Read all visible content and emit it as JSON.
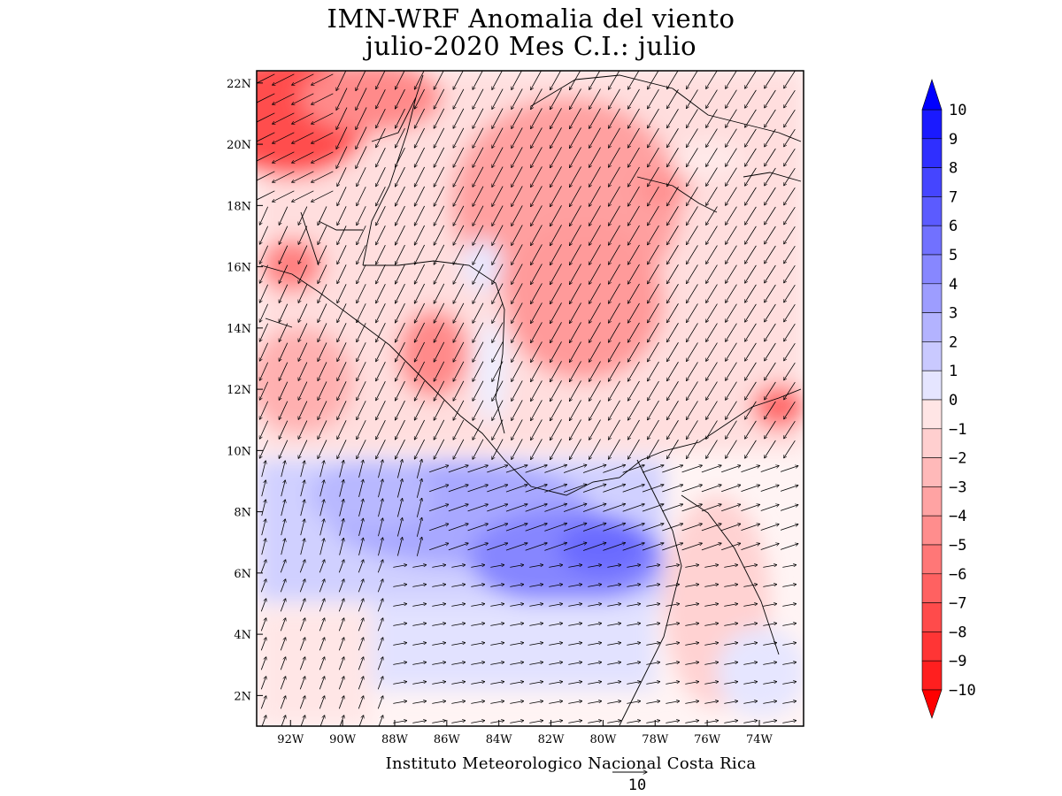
{
  "title": {
    "line1": "IMN-WRF Anomalia del viento",
    "line2": "julio-2020 Mes C.I.: julio"
  },
  "map": {
    "lon_range": [
      -93.3,
      -72.3
    ],
    "lat_range": [
      1.0,
      22.4
    ],
    "lon_ticks": [
      {
        "value": -92,
        "label": "92W"
      },
      {
        "value": -90,
        "label": "90W"
      },
      {
        "value": -88,
        "label": "88W"
      },
      {
        "value": -86,
        "label": "86W"
      },
      {
        "value": -84,
        "label": "84W"
      },
      {
        "value": -82,
        "label": "82W"
      },
      {
        "value": -80,
        "label": "80W"
      },
      {
        "value": -78,
        "label": "78W"
      },
      {
        "value": -76,
        "label": "76W"
      },
      {
        "value": -74,
        "label": "74W"
      }
    ],
    "lat_ticks": [
      {
        "value": 22,
        "label": "22N"
      },
      {
        "value": 20,
        "label": "20N"
      },
      {
        "value": 18,
        "label": "18N"
      },
      {
        "value": 16,
        "label": "16N"
      },
      {
        "value": 14,
        "label": "14N"
      },
      {
        "value": 12,
        "label": "12N"
      },
      {
        "value": 10,
        "label": "10N"
      },
      {
        "value": 8,
        "label": "8N"
      },
      {
        "value": 6,
        "label": "6N"
      },
      {
        "value": 4,
        "label": "4N"
      },
      {
        "value": 2,
        "label": "2N"
      }
    ]
  },
  "colorbar": {
    "levels": [
      10,
      9,
      8,
      7,
      6,
      5,
      4,
      3,
      2,
      1,
      0,
      -1,
      -2,
      -3,
      -4,
      -5,
      -6,
      -7,
      -8,
      -9,
      -10
    ],
    "labels": [
      "10",
      "9",
      "8",
      "7",
      "6",
      "5",
      "4",
      "3",
      "2",
      "1",
      "0",
      "−1",
      "−2",
      "−3",
      "−4",
      "−5",
      "−6",
      "−7",
      "−8",
      "−9",
      "−10"
    ],
    "colors": [
      "#1a1aff",
      "#2f2fff",
      "#4545ff",
      "#5b5bff",
      "#7171ff",
      "#8787ff",
      "#9d9dff",
      "#b3b3ff",
      "#c9c9ff",
      "#e5e5ff",
      "#ffe5e5",
      "#ffcfcf",
      "#ffb9b9",
      "#ffa3a3",
      "#ff8d8d",
      "#ff7777",
      "#ff6161",
      "#ff4b4b",
      "#ff3535",
      "#ff1f1f"
    ],
    "top_arrow_color": "#0000ff",
    "bottom_arrow_color": "#ff0000"
  },
  "credit": "Instituto Meteorologico Nacional Costa Rica",
  "reference_vector": {
    "value": 10,
    "label": "10"
  }
}
